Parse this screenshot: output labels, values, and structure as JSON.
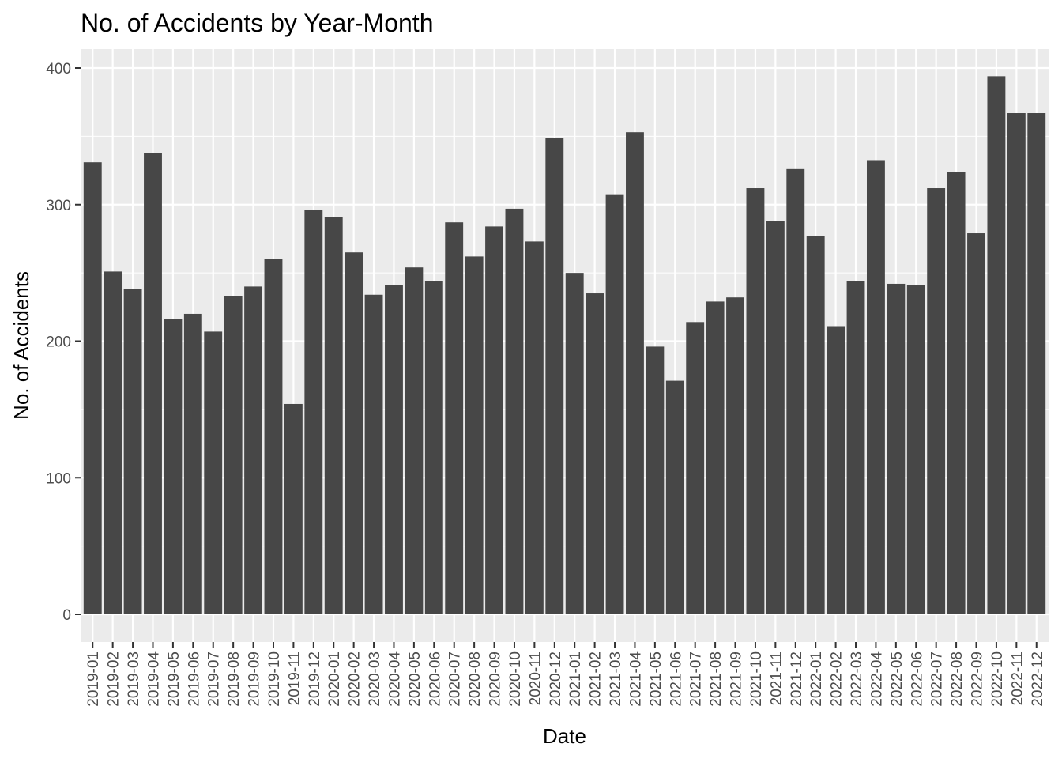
{
  "chart_data": {
    "type": "bar",
    "title": "No. of Accidents by Year-Month",
    "xlabel": "Date",
    "ylabel": "No. of Accidents",
    "categories": [
      "2019-01",
      "2019-02",
      "2019-03",
      "2019-04",
      "2019-05",
      "2019-06",
      "2019-07",
      "2019-08",
      "2019-09",
      "2019-10",
      "2019-11",
      "2019-12",
      "2020-01",
      "2020-02",
      "2020-03",
      "2020-04",
      "2020-05",
      "2020-06",
      "2020-07",
      "2020-08",
      "2020-09",
      "2020-10",
      "2020-11",
      "2020-12",
      "2021-01",
      "2021-02",
      "2021-03",
      "2021-04",
      "2021-05",
      "2021-06",
      "2021-07",
      "2021-08",
      "2021-09",
      "2021-10",
      "2021-11",
      "2021-12",
      "2022-01",
      "2022-02",
      "2022-03",
      "2022-04",
      "2022-05",
      "2022-06",
      "2022-07",
      "2022-08",
      "2022-09",
      "2022-10",
      "2022-11",
      "2022-12"
    ],
    "values": [
      331,
      251,
      238,
      338,
      216,
      220,
      207,
      233,
      240,
      260,
      154,
      296,
      291,
      265,
      234,
      241,
      254,
      244,
      287,
      262,
      284,
      297,
      273,
      349,
      250,
      235,
      307,
      353,
      196,
      171,
      214,
      229,
      232,
      312,
      288,
      326,
      277,
      211,
      244,
      332,
      242,
      241,
      312,
      324,
      279,
      394,
      367,
      367
    ],
    "ylim": [
      0,
      400
    ],
    "yticks": [
      0,
      100,
      200,
      300,
      400
    ],
    "grid": true,
    "legend": "none",
    "colors": {
      "bar": "#474747",
      "panel": "#ebebeb",
      "grid_major": "#ffffff",
      "tick_text": "#4d4d4d",
      "tick_mark": "#333333",
      "text": "#000000"
    }
  }
}
